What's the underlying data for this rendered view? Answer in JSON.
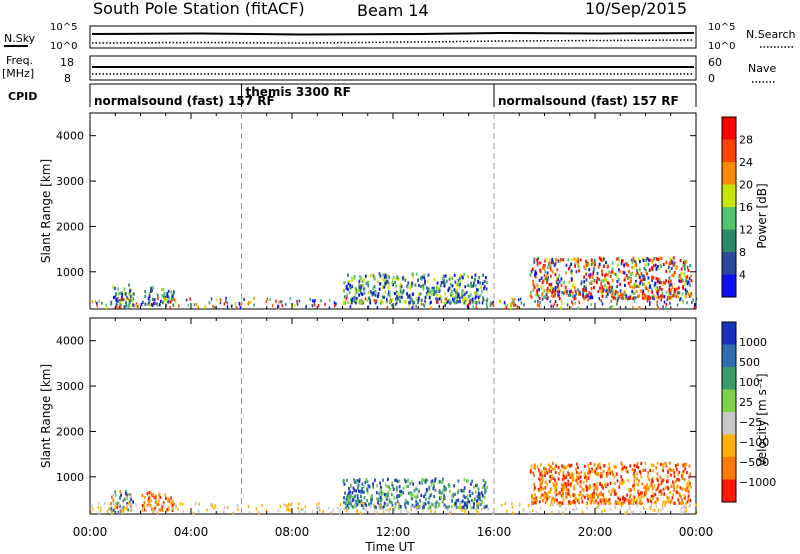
{
  "header": {
    "station": "South Pole Station (fitACF)",
    "beam": "Beam 14",
    "date": "10/Sep/2015"
  },
  "labels": {
    "nsky": "N.Sky",
    "nsearch": "N.Search",
    "freq": "Freq.",
    "freq_unit": "[MHz]",
    "nave": "Nave",
    "cpid": "CPID",
    "y_axis": "Slant Range [km]",
    "x_axis": "Time UT",
    "power": "Power [dB]",
    "velocity": "Velocity [m s⁻¹]"
  },
  "nsky_ticks": {
    "left_top": "10^5",
    "left_bot": "10^0",
    "right_top": "10^5",
    "right_bot": "10^0"
  },
  "freq_ticks": {
    "left_top": "18",
    "left_bot": "8",
    "right_top": "60",
    "right_bot": "0"
  },
  "cpid_segments": [
    {
      "label": "normalsound (fast) 157 RF",
      "start_h": 0
    },
    {
      "label": "themis 3300 RF",
      "start_h": 6
    },
    {
      "label": "normalsound (fast) 157 RF",
      "start_h": 16
    }
  ],
  "chart_data": [
    {
      "type": "heatmap",
      "parameter": "Power",
      "xlabel": "Time UT",
      "ylabel": "Slant Range [km]",
      "xlim": [
        0,
        24
      ],
      "ylim": [
        180,
        4500
      ],
      "x_ticks": [
        "00:00",
        "04:00",
        "08:00",
        "12:00",
        "16:00",
        "20:00",
        "00:00"
      ],
      "y_ticks": [
        1000,
        2000,
        3000,
        4000
      ],
      "colorbar": {
        "label": "Power [dB]",
        "ticks": [
          "28",
          "24",
          "20",
          "16",
          "12",
          "8",
          "4"
        ],
        "colors": [
          "#ff0000",
          "#ff4400",
          "#ff8a00",
          "#c8e600",
          "#54c46e",
          "#2c8a6a",
          "#2a4aa0",
          "#0a10f0"
        ]
      },
      "echo_regions": [
        {
          "t": [
            0.8,
            1.7
          ],
          "r": [
            200,
            700
          ],
          "level": "mixed"
        },
        {
          "t": [
            2.0,
            3.3
          ],
          "r": [
            250,
            650
          ],
          "level": "mixed"
        },
        {
          "t": [
            10.0,
            15.7
          ],
          "r": [
            300,
            950
          ],
          "level": "mixed"
        },
        {
          "t": [
            17.4,
            23.8
          ],
          "r": [
            400,
            1300
          ],
          "level": "strong"
        }
      ]
    },
    {
      "type": "heatmap",
      "parameter": "Velocity",
      "xlabel": "Time UT",
      "ylabel": "Slant Range [km]",
      "xlim": [
        0,
        24
      ],
      "ylim": [
        180,
        4500
      ],
      "x_ticks": [
        "00:00",
        "04:00",
        "08:00",
        "12:00",
        "16:00",
        "20:00",
        "00:00"
      ],
      "y_ticks": [
        1000,
        2000,
        3000,
        4000
      ],
      "colorbar": {
        "label": "Velocity [m s⁻¹]",
        "ticks": [
          "1000",
          "500",
          "100",
          "25",
          "−25",
          "−100",
          "−500",
          "−1000"
        ],
        "colors": [
          "#1830c0",
          "#2f6fb0",
          "#3a9a6a",
          "#7ed04a",
          "#c8c8c8",
          "#ffb000",
          "#ff7a00",
          "#ff1a00"
        ]
      },
      "echo_regions": [
        {
          "t": [
            0.8,
            1.7
          ],
          "r": [
            200,
            700
          ],
          "level": "mixed"
        },
        {
          "t": [
            2.0,
            3.3
          ],
          "r": [
            250,
            650
          ],
          "level": "away"
        },
        {
          "t": [
            10.0,
            15.7
          ],
          "r": [
            300,
            950
          ],
          "level": "toward"
        },
        {
          "t": [
            17.4,
            23.8
          ],
          "r": [
            400,
            1300
          ],
          "level": "away"
        }
      ]
    }
  ]
}
